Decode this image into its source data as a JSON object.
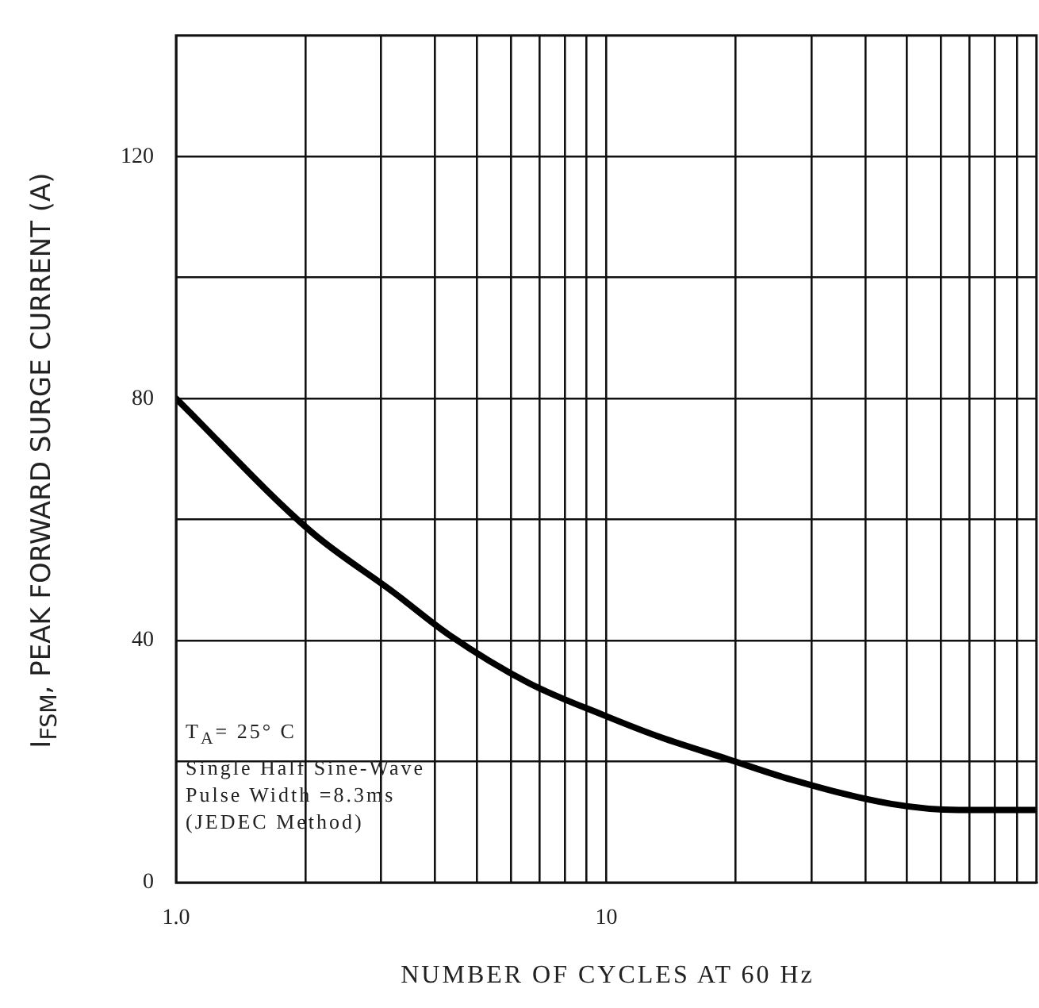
{
  "chart_data": {
    "type": "line",
    "xlabel": "NUMBER OF CYCLES AT 60 Hz",
    "ylabel": "I$_{FSM}$, PEAK FORWARD SURGE CURRENT (A)",
    "x": [
      1,
      2.06,
      3.2,
      4.3,
      6.6,
      10,
      13.4,
      19,
      27,
      46,
      66,
      100
    ],
    "values": [
      80,
      58,
      48,
      41,
      33,
      27.5,
      24,
      20.5,
      17,
      13,
      12,
      12
    ],
    "color": "#000000",
    "log": "x",
    "xlim": [
      1,
      100
    ],
    "xticks": [
      {
        "value": 1,
        "label": "1.0"
      },
      {
        "value": 2,
        "label": null
      },
      {
        "value": 3,
        "label": null
      },
      {
        "value": 4,
        "label": null
      },
      {
        "value": 5,
        "label": null
      },
      {
        "value": 6,
        "label": null
      },
      {
        "value": 7,
        "label": null
      },
      {
        "value": 8,
        "label": null
      },
      {
        "value": 9,
        "label": null
      },
      10,
      {
        "value": 20,
        "label": null
      },
      {
        "value": 30,
        "label": null
      },
      {
        "value": 40,
        "label": null
      },
      {
        "value": 50,
        "label": null
      },
      {
        "value": 60,
        "label": null
      },
      {
        "value": 70,
        "label": null
      },
      {
        "value": 80,
        "label": null
      },
      {
        "value": 90,
        "label": null
      }
    ],
    "ylim": [
      0,
      140
    ],
    "yticks": [
      0,
      {
        "value": 20,
        "label": null
      },
      40,
      {
        "value": 60,
        "label": null
      },
      80,
      {
        "value": 100,
        "label": null
      },
      120
    ],
    "grid": true,
    "legend": false,
    "marker": "none",
    "line_style": "solid",
    "annotations": [
      "T$_{A}$= 25° C",
      "Single Half Sine-Wave",
      "Pulse Width =8.3ms",
      "(JEDEC Method)"
    ]
  }
}
